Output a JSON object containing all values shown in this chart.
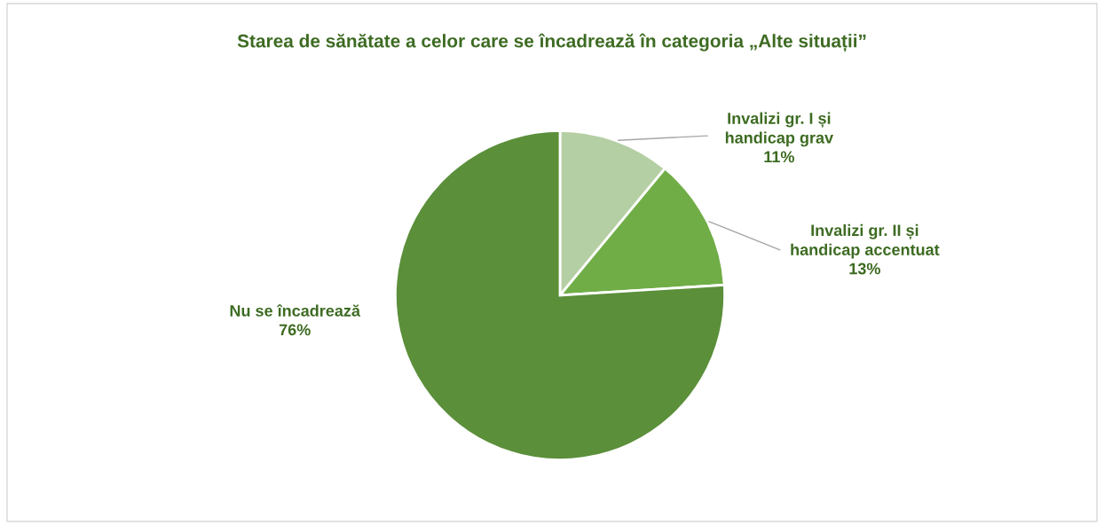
{
  "chart_data": {
    "type": "pie",
    "title": "Starea de sănătate a celor care se încadrează în categoria „Alte situații”",
    "categories": [
      "Invalizi gr. I și\nhandicap grav",
      "Invalizi gr. II și\nhandicap accentuat",
      "Nu se încadrează"
    ],
    "values": [
      11,
      13,
      76
    ],
    "value_labels": [
      "11%",
      "13%",
      "76%"
    ],
    "colors": [
      "#b5cfa4",
      "#70ad47",
      "#5b8f3a"
    ]
  }
}
